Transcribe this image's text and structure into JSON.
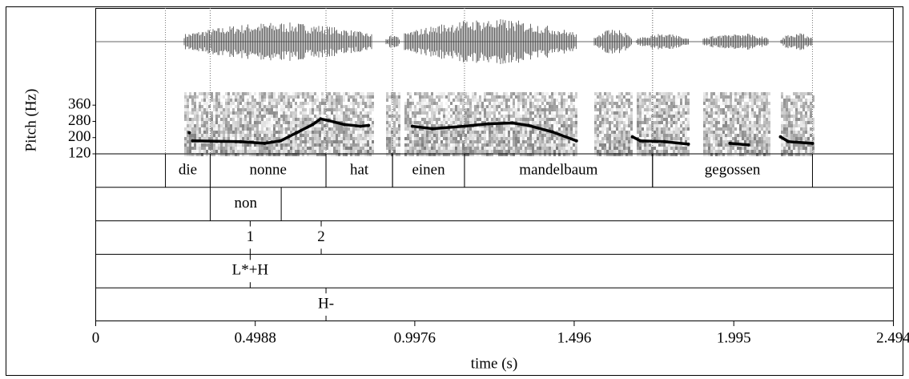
{
  "chart_data": {
    "type": "line",
    "ylabel": "Pitch (Hz)",
    "xlabel": "time (s)",
    "xlim": [
      0,
      2.494
    ],
    "xticks": [
      0,
      0.4988,
      0.9976,
      1.496,
      1.995,
      2.494
    ],
    "ylim": [
      120,
      424
    ],
    "yticks": [
      120,
      200,
      280,
      360
    ],
    "color": "#000000",
    "x": [
      0.293,
      0.298,
      0.303,
      0.453,
      0.528,
      0.578,
      0.628,
      0.678,
      0.703,
      0.728,
      0.778,
      0.828,
      0.853,
      0.92,
      0.99,
      1.053,
      1.153,
      1.228,
      1.303,
      1.353,
      1.428,
      1.503,
      1.59,
      1.678,
      1.703,
      1.778,
      1.853,
      1.92,
      1.983,
      2.041,
      2.09,
      2.141,
      2.166,
      2.241
    ],
    "values": [
      224,
      null,
      184,
      180,
      172,
      184,
      224,
      264,
      292,
      284,
      264,
      256,
      260,
      null,
      256,
      244,
      256,
      268,
      272,
      260,
      228,
      184,
      null,
      204,
      184,
      180,
      168,
      null,
      172,
      164,
      null,
      204,
      180,
      172
    ],
    "tiers": [
      {
        "intervals": [
          {
            "start": 0.218,
            "end": 0.358,
            "text": "die"
          },
          {
            "start": 0.358,
            "end": 0.72,
            "text": "nonne"
          },
          {
            "start": 0.72,
            "end": 0.928,
            "text": "hat"
          },
          {
            "start": 0.928,
            "end": 1.153,
            "text": "einen"
          },
          {
            "start": 1.153,
            "end": 1.741,
            "text": "mandelbaum"
          },
          {
            "start": 1.741,
            "end": 2.241,
            "text": "gegossen"
          }
        ]
      },
      {
        "intervals": [
          {
            "start": 0.358,
            "end": 0.58,
            "text": "non"
          }
        ]
      },
      {
        "points": [
          {
            "time": 0.483,
            "text": "1"
          },
          {
            "time": 0.705,
            "text": "2"
          }
        ]
      },
      {
        "points": [
          {
            "time": 0.483,
            "text": "L*+H"
          }
        ]
      },
      {
        "points": [
          {
            "time": 0.72,
            "text": "H-"
          }
        ]
      }
    ]
  }
}
